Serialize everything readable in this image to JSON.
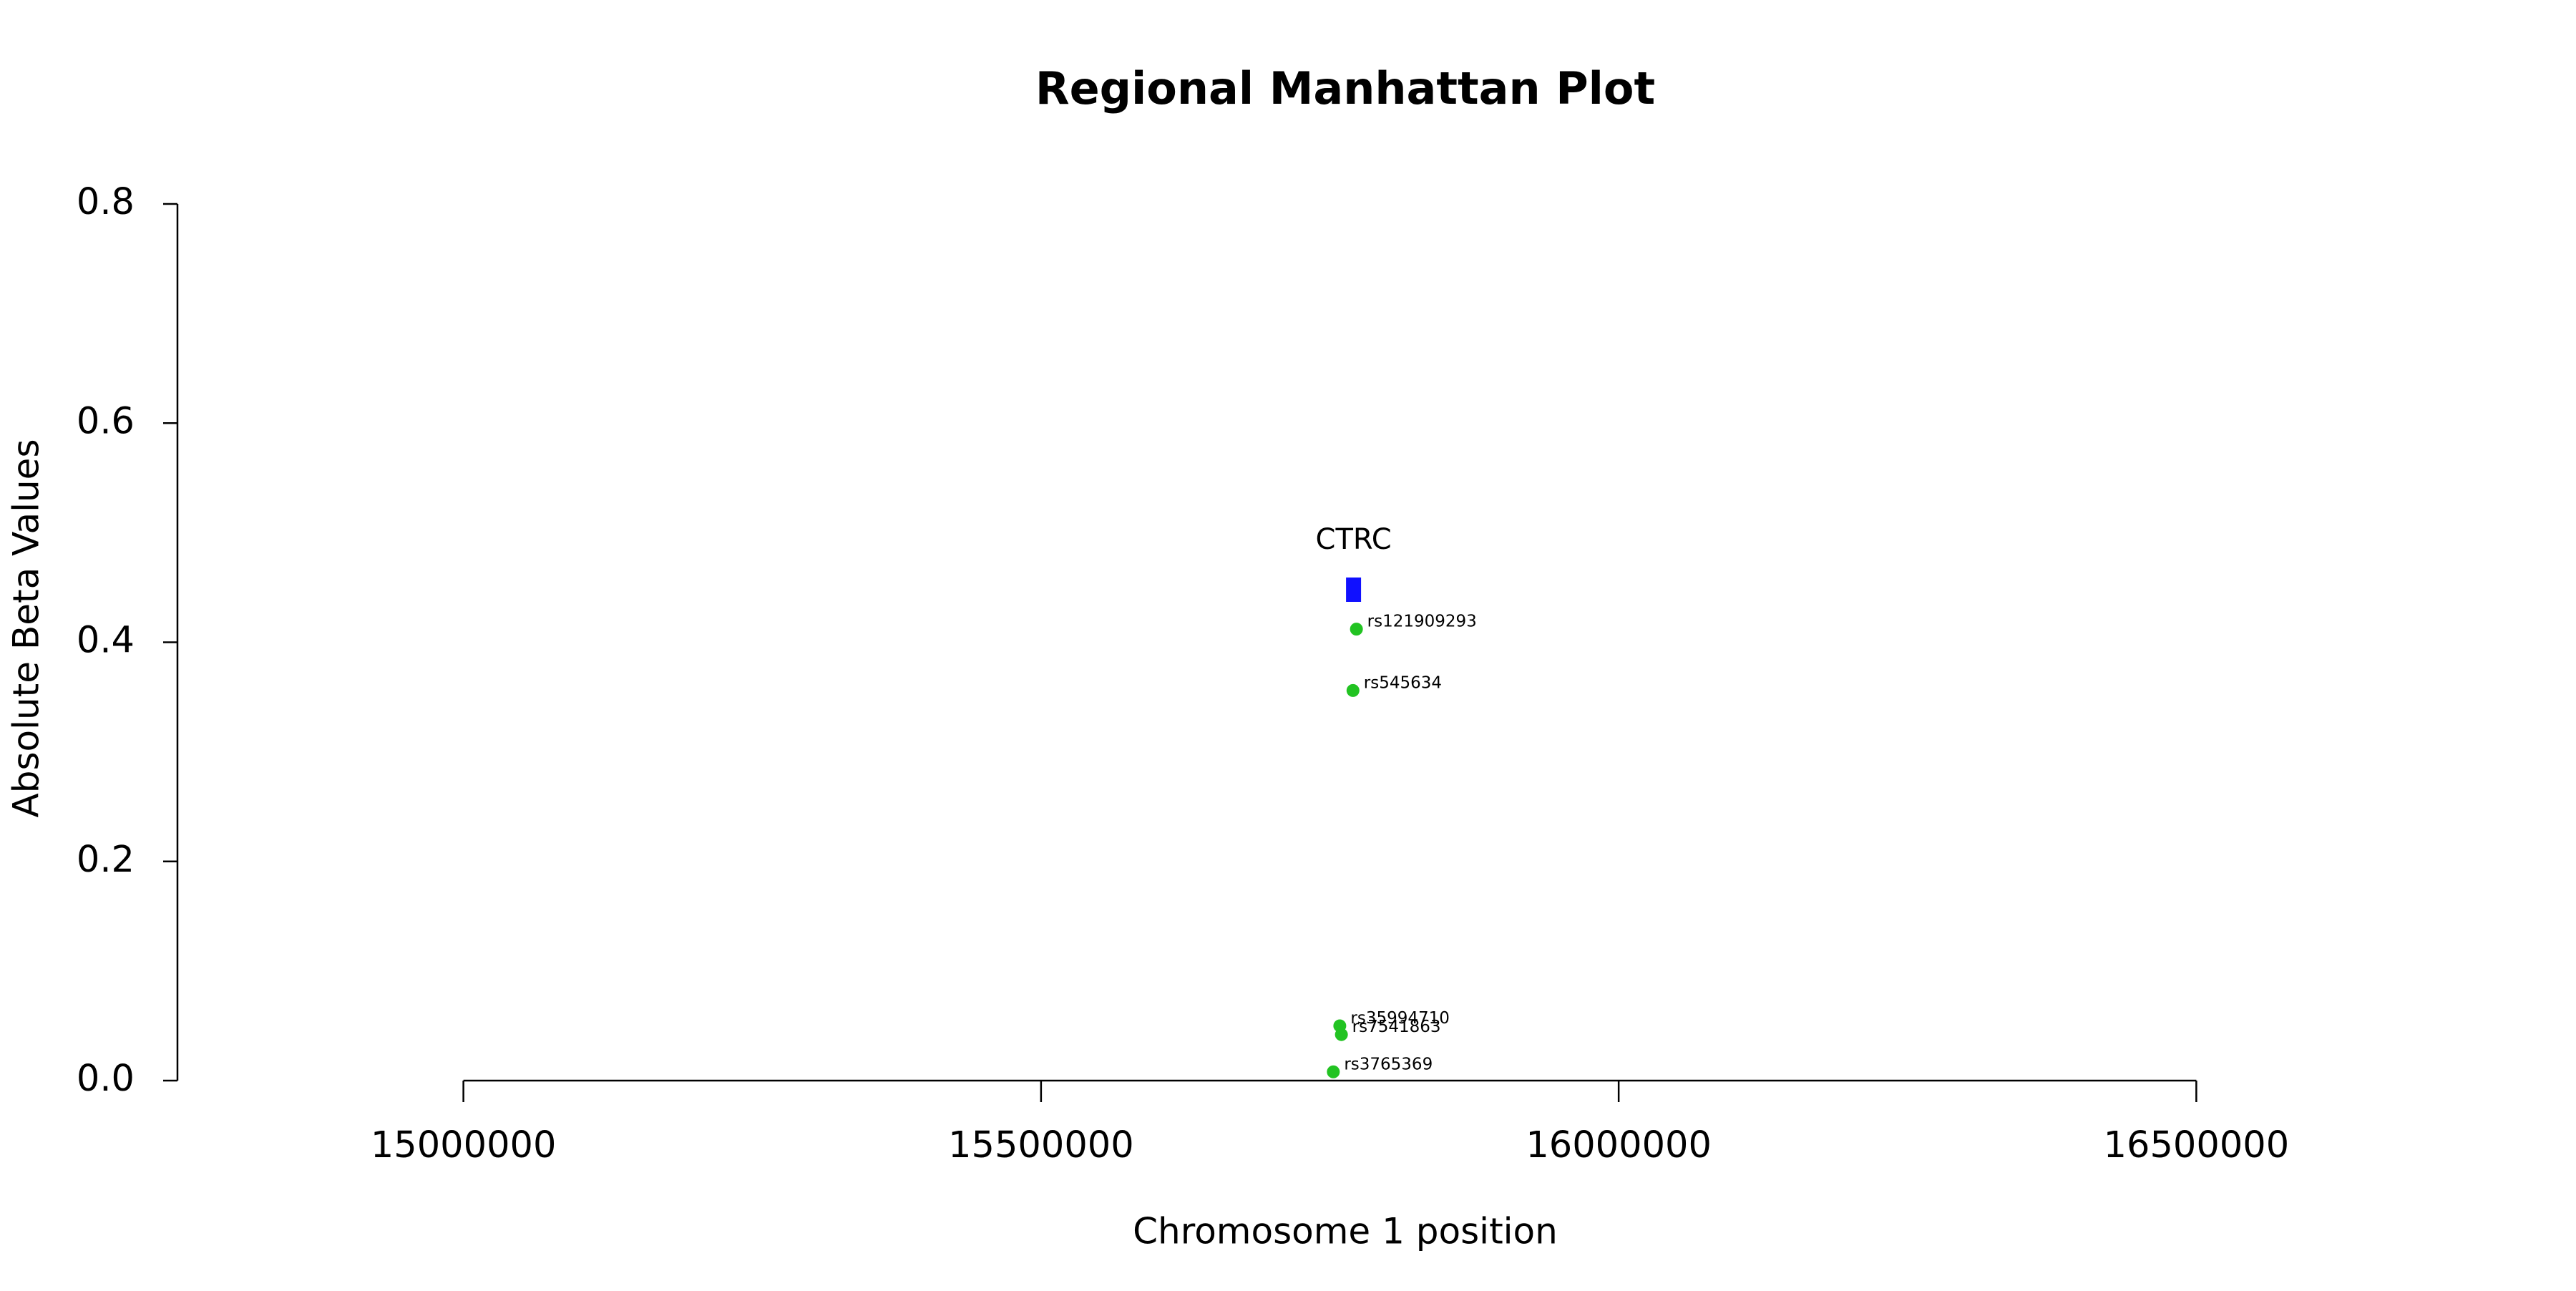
{
  "chart_data": {
    "type": "scatter",
    "title": "Regional Manhattan Plot",
    "x_label": "Chromosome 1 position",
    "y_label": "Absolute Beta Values",
    "xlim": [
      14750000,
      16750000
    ],
    "xticks": [
      15000000,
      15500000,
      16000000,
      16500000
    ],
    "ylim": [
      0,
      0.8
    ],
    "yticks": [
      {
        "value": 0,
        "label": "0.0"
      },
      0.2,
      0.4,
      0.6,
      0.8
    ],
    "series": [
      {
        "color": "#22c322",
        "x": [
          15773000,
          15770000,
          15758600,
          15760000,
          15753000
        ],
        "values": [
          0.412,
          0.356,
          0.05,
          0.042,
          0.008
        ],
        "point_labels": [
          "rs121909293",
          "rs545634",
          "rs35994710",
          "rs7541863",
          "rs3765369"
        ]
      }
    ],
    "genes": [
      {
        "name": "CTRC",
        "start": 15764000,
        "end": 15777000,
        "y": 0.448,
        "color": "#1010ff"
      }
    ]
  }
}
